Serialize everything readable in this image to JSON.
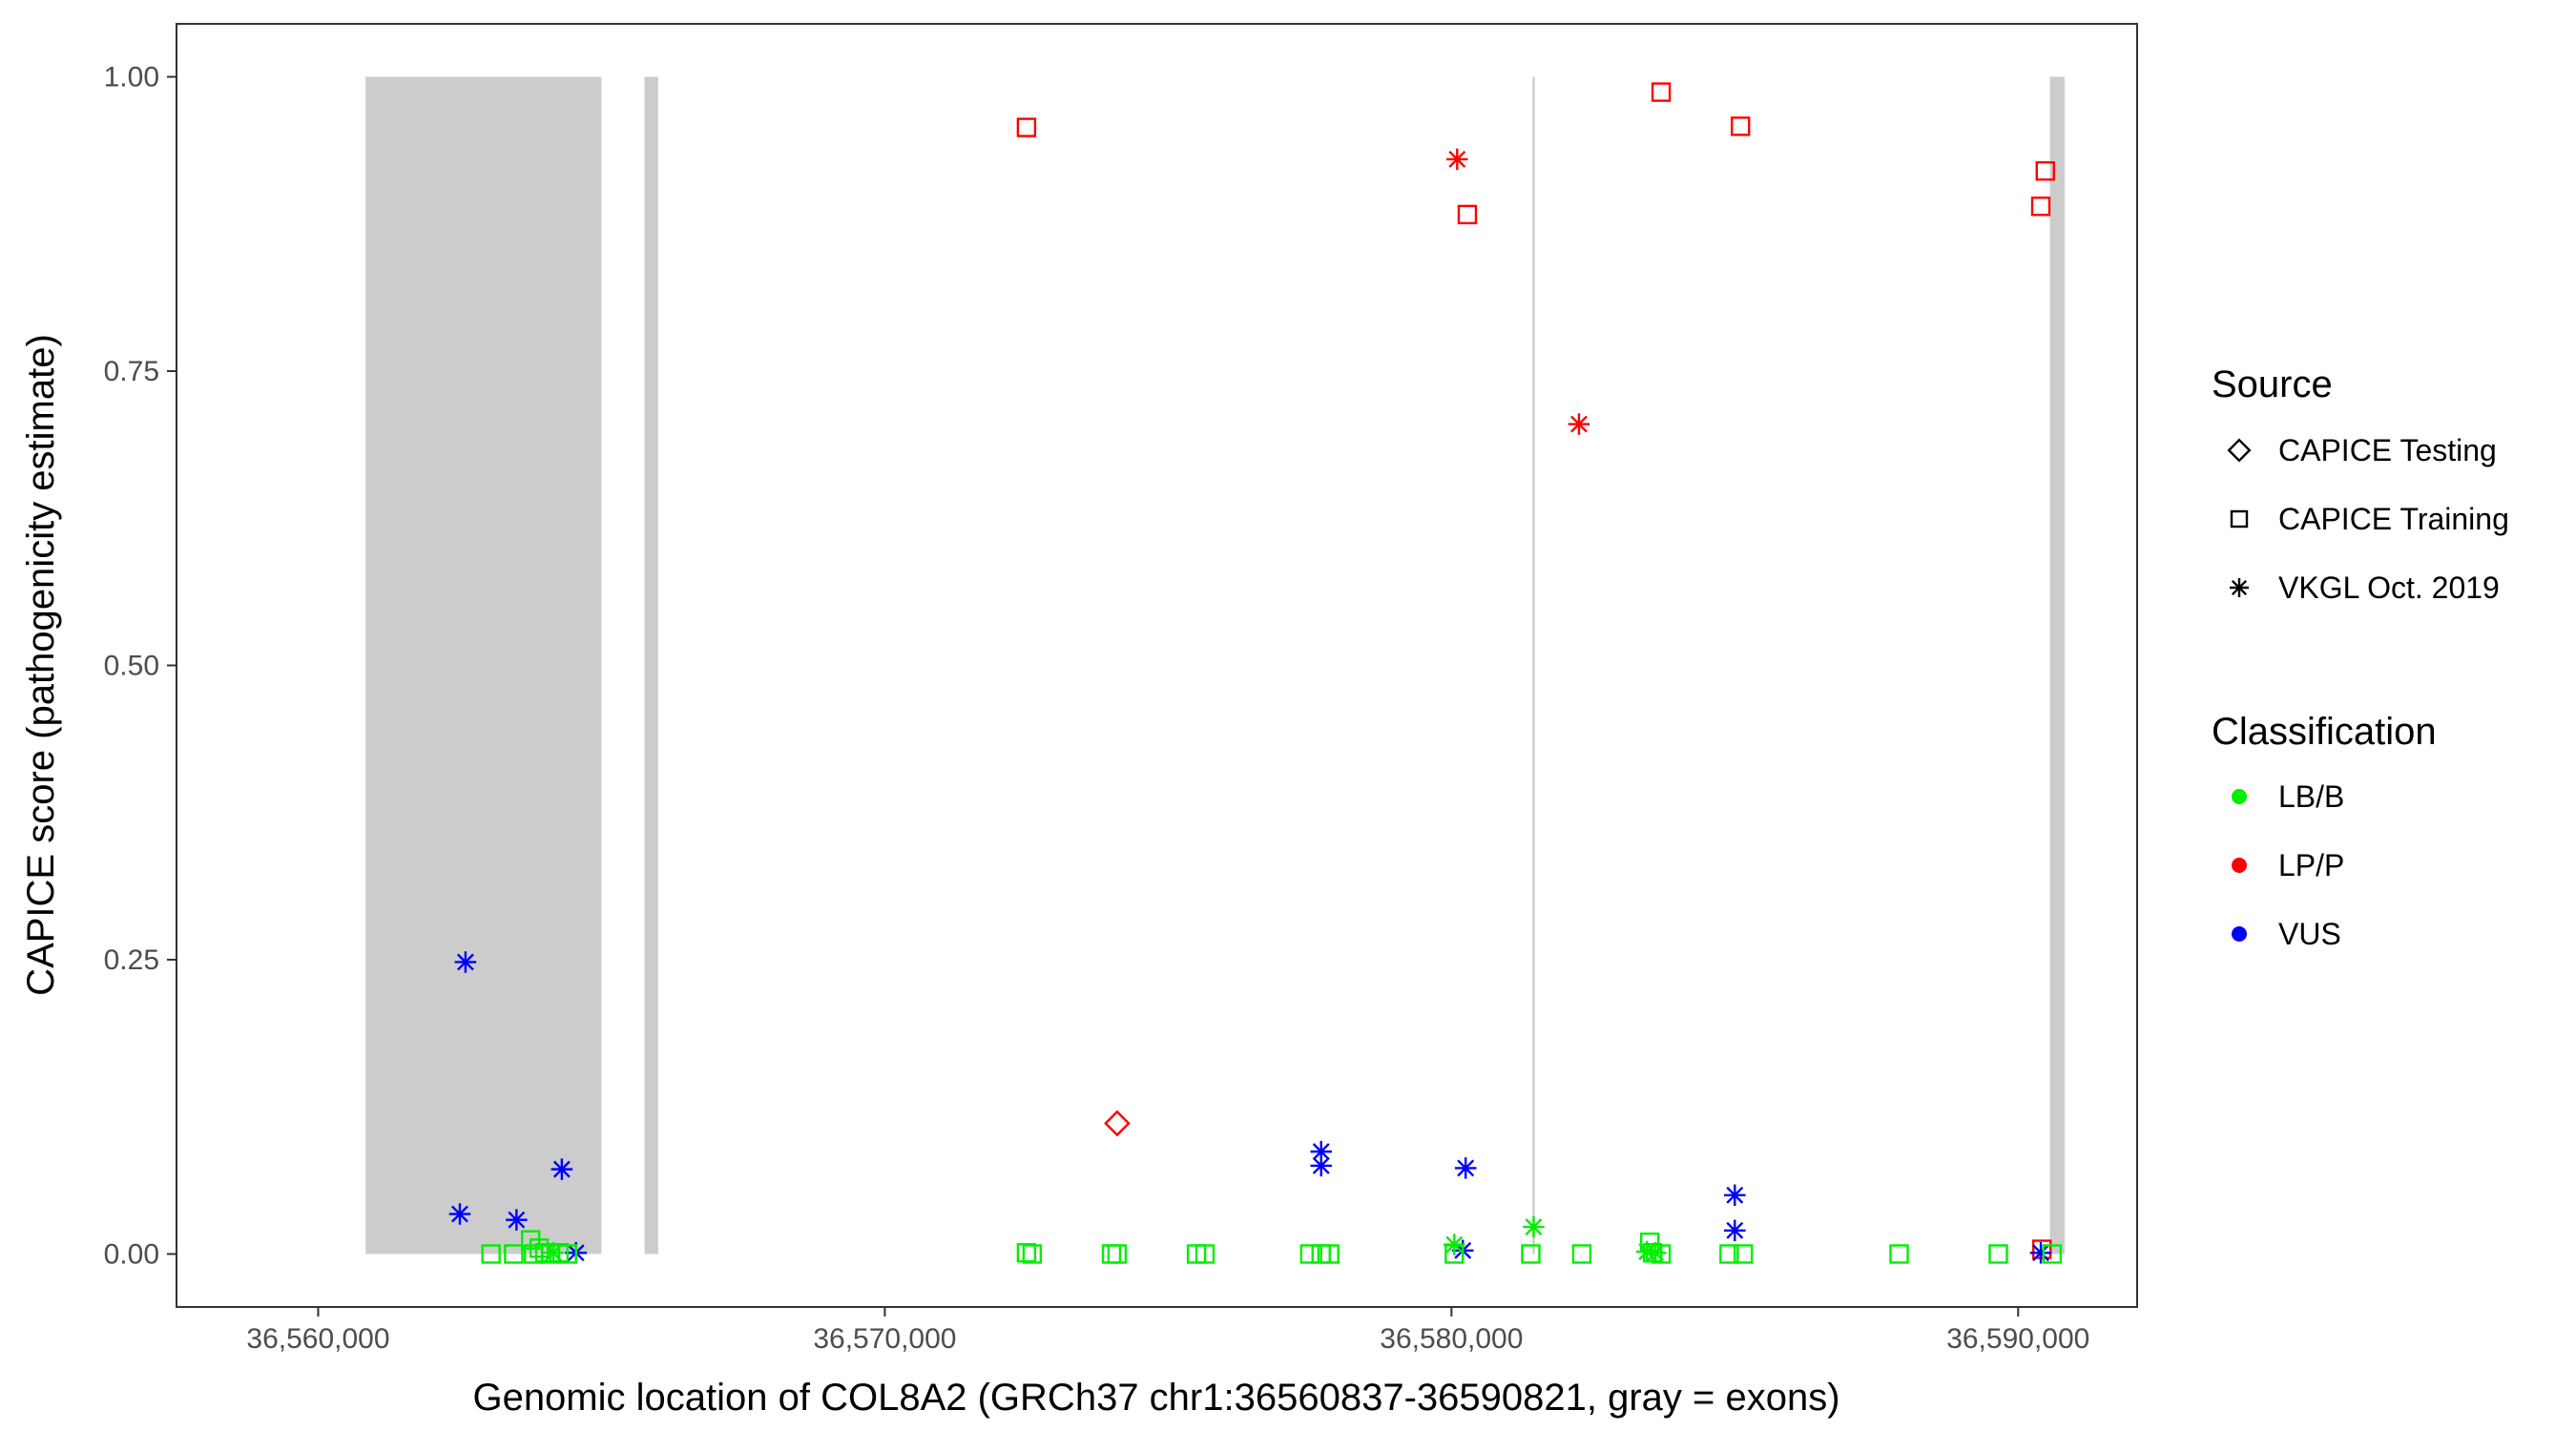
{
  "chart_data": {
    "type": "scatter",
    "xlabel": "Genomic location of COL8A2 (GRCh37 chr1:36560837-36590821, gray = exons)",
    "ylabel": "CAPICE score (pathogenicity estimate)",
    "xlim": [
      36557500,
      36592100
    ],
    "ylim": [
      -0.045,
      1.045
    ],
    "x_ticks": [
      {
        "value": 36560000,
        "label": "36,560,000"
      },
      {
        "value": 36570000,
        "label": "36,570,000"
      },
      {
        "value": 36580000,
        "label": "36,580,000"
      },
      {
        "value": 36590000,
        "label": "36,590,000"
      }
    ],
    "y_ticks": [
      {
        "value": 0,
        "label": "0.00"
      },
      {
        "value": 0.25,
        "label": "0.25"
      },
      {
        "value": 0.5,
        "label": "0.50"
      },
      {
        "value": 0.75,
        "label": "0.75"
      },
      {
        "value": 1.0,
        "label": "1.00"
      }
    ],
    "grid": false,
    "exons": [
      {
        "start": 36560837,
        "end": 36565000
      },
      {
        "start": 36565760,
        "end": 36566000
      },
      {
        "start": 36581430,
        "end": 36581470
      },
      {
        "start": 36590560,
        "end": 36590821
      }
    ],
    "legend_placement": "right",
    "legends": {
      "source": {
        "title": "Source",
        "items": [
          {
            "label": "CAPICE Testing",
            "shape": "diamond"
          },
          {
            "label": "CAPICE Training",
            "shape": "square"
          },
          {
            "label": "VKGL Oct. 2019",
            "shape": "star"
          }
        ]
      },
      "classification": {
        "title": "Classification",
        "items": [
          {
            "label": "LB/B",
            "color": "#00ee00"
          },
          {
            "label": "LP/P",
            "color": "#ff0000"
          },
          {
            "label": "VUS",
            "color": "#0000ff"
          }
        ]
      }
    },
    "points": [
      {
        "x": 36572500,
        "y": 0.957,
        "source": "CAPICE Training",
        "class": "LP/P"
      },
      {
        "x": 36580280,
        "y": 0.883,
        "source": "CAPICE Training",
        "class": "LP/P"
      },
      {
        "x": 36583700,
        "y": 0.987,
        "source": "CAPICE Training",
        "class": "LP/P"
      },
      {
        "x": 36585100,
        "y": 0.958,
        "source": "CAPICE Training",
        "class": "LP/P"
      },
      {
        "x": 36590400,
        "y": 0.89,
        "source": "CAPICE Training",
        "class": "LP/P"
      },
      {
        "x": 36590480,
        "y": 0.92,
        "source": "CAPICE Training",
        "class": "LP/P"
      },
      {
        "x": 36590420,
        "y": 0.004,
        "source": "CAPICE Training",
        "class": "LP/P"
      },
      {
        "x": 36580100,
        "y": 0.93,
        "source": "VKGL Oct. 2019",
        "class": "LP/P"
      },
      {
        "x": 36582250,
        "y": 0.705,
        "source": "VKGL Oct. 2019",
        "class": "LP/P"
      },
      {
        "x": 36574100,
        "y": 0.111,
        "source": "CAPICE Testing",
        "class": "LP/P"
      },
      {
        "x": 36562600,
        "y": 0.248,
        "source": "VKGL Oct. 2019",
        "class": "VUS"
      },
      {
        "x": 36562500,
        "y": 0.034,
        "source": "VKGL Oct. 2019",
        "class": "VUS"
      },
      {
        "x": 36563500,
        "y": 0.029,
        "source": "VKGL Oct. 2019",
        "class": "VUS"
      },
      {
        "x": 36564300,
        "y": 0.072,
        "source": "VKGL Oct. 2019",
        "class": "VUS"
      },
      {
        "x": 36564550,
        "y": 0.001,
        "source": "VKGL Oct. 2019",
        "class": "VUS"
      },
      {
        "x": 36577700,
        "y": 0.087,
        "source": "VKGL Oct. 2019",
        "class": "VUS"
      },
      {
        "x": 36577700,
        "y": 0.075,
        "source": "VKGL Oct. 2019",
        "class": "VUS"
      },
      {
        "x": 36580250,
        "y": 0.073,
        "source": "VKGL Oct. 2019",
        "class": "VUS"
      },
      {
        "x": 36580200,
        "y": 0.003,
        "source": "VKGL Oct. 2019",
        "class": "VUS"
      },
      {
        "x": 36585000,
        "y": 0.05,
        "source": "VKGL Oct. 2019",
        "class": "VUS"
      },
      {
        "x": 36585000,
        "y": 0.02,
        "source": "VKGL Oct. 2019",
        "class": "VUS"
      },
      {
        "x": 36590400,
        "y": 0.001,
        "source": "VKGL Oct. 2019",
        "class": "VUS"
      },
      {
        "x": 36581450,
        "y": 0.023,
        "source": "VKGL Oct. 2019",
        "class": "LB/B"
      },
      {
        "x": 36580050,
        "y": 0.008,
        "source": "VKGL Oct. 2019",
        "class": "LB/B"
      },
      {
        "x": 36583450,
        "y": 0.002,
        "source": "VKGL Oct. 2019",
        "class": "LB/B"
      },
      {
        "x": 36583600,
        "y": 0.001,
        "source": "VKGL Oct. 2019",
        "class": "LB/B"
      },
      {
        "x": 36564150,
        "y": 0.001,
        "source": "VKGL Oct. 2019",
        "class": "LB/B"
      },
      {
        "x": 36563050,
        "y": 0.0,
        "source": "CAPICE Training",
        "class": "LB/B"
      },
      {
        "x": 36563450,
        "y": 0.0,
        "source": "CAPICE Training",
        "class": "LB/B"
      },
      {
        "x": 36563750,
        "y": 0.012,
        "source": "CAPICE Training",
        "class": "LB/B"
      },
      {
        "x": 36563800,
        "y": 0.0,
        "source": "CAPICE Training",
        "class": "LB/B"
      },
      {
        "x": 36563900,
        "y": 0.005,
        "source": "CAPICE Training",
        "class": "LB/B"
      },
      {
        "x": 36564000,
        "y": 0.001,
        "source": "CAPICE Training",
        "class": "LB/B"
      },
      {
        "x": 36564100,
        "y": 0.0,
        "source": "CAPICE Training",
        "class": "LB/B"
      },
      {
        "x": 36564250,
        "y": 0.001,
        "source": "CAPICE Training",
        "class": "LB/B"
      },
      {
        "x": 36564400,
        "y": 0.0,
        "source": "CAPICE Training",
        "class": "LB/B"
      },
      {
        "x": 36572500,
        "y": 0.001,
        "source": "CAPICE Training",
        "class": "LB/B"
      },
      {
        "x": 36572600,
        "y": 0.0,
        "source": "CAPICE Training",
        "class": "LB/B"
      },
      {
        "x": 36574000,
        "y": 0.0,
        "source": "CAPICE Training",
        "class": "LB/B"
      },
      {
        "x": 36574100,
        "y": 0.0,
        "source": "CAPICE Training",
        "class": "LB/B"
      },
      {
        "x": 36575500,
        "y": 0.0,
        "source": "CAPICE Training",
        "class": "LB/B"
      },
      {
        "x": 36575650,
        "y": 0.0,
        "source": "CAPICE Training",
        "class": "LB/B"
      },
      {
        "x": 36577500,
        "y": 0.0,
        "source": "CAPICE Training",
        "class": "LB/B"
      },
      {
        "x": 36577700,
        "y": 0.0,
        "source": "CAPICE Training",
        "class": "LB/B"
      },
      {
        "x": 36577850,
        "y": 0.0,
        "source": "CAPICE Training",
        "class": "LB/B"
      },
      {
        "x": 36580050,
        "y": 0.0,
        "source": "CAPICE Training",
        "class": "LB/B"
      },
      {
        "x": 36581400,
        "y": 0.0,
        "source": "CAPICE Training",
        "class": "LB/B"
      },
      {
        "x": 36582300,
        "y": 0.0,
        "source": "CAPICE Training",
        "class": "LB/B"
      },
      {
        "x": 36583500,
        "y": 0.01,
        "source": "CAPICE Training",
        "class": "LB/B"
      },
      {
        "x": 36583550,
        "y": 0.001,
        "source": "CAPICE Training",
        "class": "LB/B"
      },
      {
        "x": 36583700,
        "y": 0.0,
        "source": "CAPICE Training",
        "class": "LB/B"
      },
      {
        "x": 36584900,
        "y": 0.0,
        "source": "CAPICE Training",
        "class": "LB/B"
      },
      {
        "x": 36585150,
        "y": 0.0,
        "source": "CAPICE Training",
        "class": "LB/B"
      },
      {
        "x": 36587900,
        "y": 0.0,
        "source": "CAPICE Training",
        "class": "LB/B"
      },
      {
        "x": 36589650,
        "y": 0.0,
        "source": "CAPICE Training",
        "class": "LB/B"
      },
      {
        "x": 36590600,
        "y": 0.0,
        "source": "CAPICE Training",
        "class": "LB/B"
      }
    ]
  }
}
